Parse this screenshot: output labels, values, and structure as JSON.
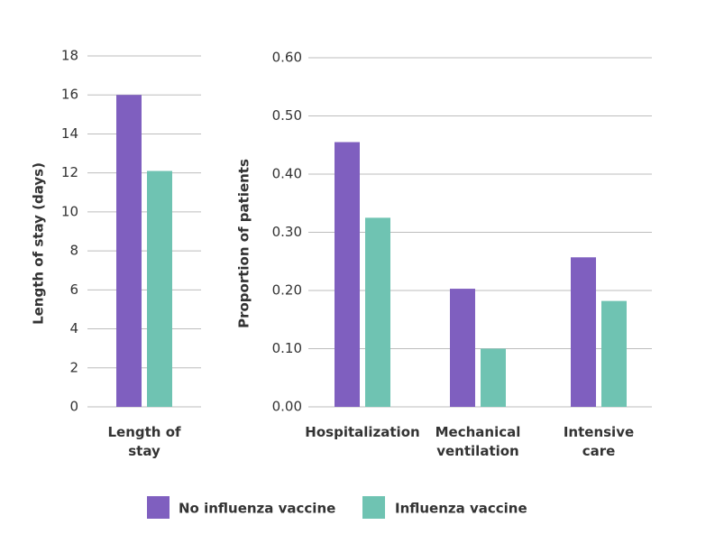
{
  "chart_data": [
    {
      "type": "bar",
      "y_label": "Length of stay (days)",
      "categories": [
        "Length of stay"
      ],
      "series": [
        {
          "name": "No influenza vaccine",
          "color": "#7f5fbf",
          "values": [
            16
          ]
        },
        {
          "name": "Influenza vaccine",
          "color": "#6fc3b2",
          "values": [
            12.1
          ]
        }
      ],
      "ylim": [
        0,
        18
      ],
      "yticks": [
        0,
        2,
        4,
        6,
        8,
        10,
        12,
        14,
        16,
        18
      ],
      "grid": true
    },
    {
      "type": "bar",
      "y_label": "Proportion of patients",
      "categories": [
        "Hospitalization",
        "Mechanical ventilation",
        "Intensive care"
      ],
      "series": [
        {
          "name": "No influenza vaccine",
          "color": "#7f5fbf",
          "values": [
            0.455,
            0.203,
            0.257
          ]
        },
        {
          "name": "Influenza vaccine",
          "color": "#6fc3b2",
          "values": [
            0.325,
            0.1,
            0.182
          ]
        }
      ],
      "ylim": [
        0,
        0.6
      ],
      "yticks": [
        {
          "value": 0,
          "label": "0.00"
        },
        {
          "value": 0.1,
          "label": "0.10"
        },
        {
          "value": 0.2,
          "label": "0.20"
        },
        {
          "value": 0.3,
          "label": "0.30"
        },
        {
          "value": 0.4,
          "label": "0.40"
        },
        {
          "value": 0.5,
          "label": "0.50"
        },
        {
          "value": 0.6,
          "label": "0.60"
        }
      ],
      "grid": true
    }
  ]
}
